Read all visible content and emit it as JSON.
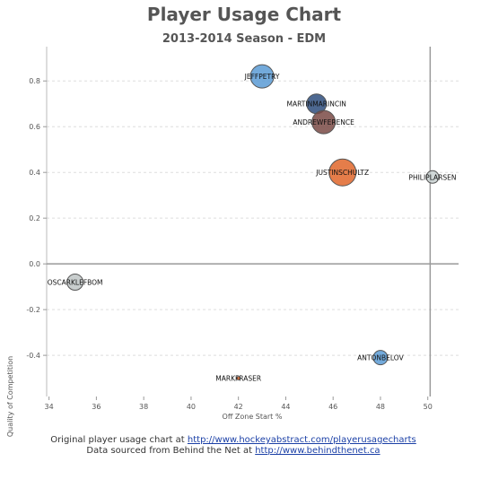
{
  "header": {
    "title": "Player Usage Chart",
    "subtitle": "2013-2014 Season - EDM"
  },
  "footer": {
    "line1_prefix": "Original player usage chart at ",
    "line1_link": "http://www.hockeyabstract.com/playerusagecharts",
    "line2_prefix": "Data sourced from Behind the Net at ",
    "line2_link": "http://www.behindthenet.ca"
  },
  "chart_data": {
    "type": "scatter",
    "title": "Player Usage Chart",
    "subtitle": "2013-2014 Season - EDM",
    "xlabel": "Off Zone Start %",
    "ylabel": "Quality of Competition",
    "xlim": [
      33.9,
      51.3
    ],
    "ylim": [
      -0.58,
      0.95
    ],
    "x_ticks": [
      34,
      36,
      38,
      40,
      42,
      44,
      46,
      48,
      50
    ],
    "y_ticks": [
      0.8,
      0.6,
      0.4,
      0.2,
      0.0,
      -0.2,
      -0.4
    ],
    "y_tick_labels": [
      "0.8",
      "0.6",
      "0.4",
      "0.2",
      "0.0",
      "-0.2",
      "-0.4"
    ],
    "reference_lines": {
      "x": 50.1,
      "y": 0.0
    },
    "grid": "horizontal dashed",
    "points": [
      {
        "name": "JEFFPETRY",
        "x": 43.0,
        "y": 0.82,
        "size": 13,
        "color": "#5b9bd5"
      },
      {
        "name": "MARTINMARINCIN",
        "x": 45.3,
        "y": 0.7,
        "size": 11,
        "color": "#2e4e7e"
      },
      {
        "name": "ANDREWFERENCE",
        "x": 45.6,
        "y": 0.62,
        "size": 13,
        "color": "#7a4a45"
      },
      {
        "name": "JUSTINSCHULTZ",
        "x": 46.4,
        "y": 0.4,
        "size": 15,
        "color": "#e0662a"
      },
      {
        "name": "PHILIPLARSEN",
        "x": 50.2,
        "y": 0.38,
        "size": 7,
        "color": "#c8d0d0"
      },
      {
        "name": "OSCARKLEFBOM",
        "x": 35.1,
        "y": -0.08,
        "size": 9,
        "color": "#c0c6c6"
      },
      {
        "name": "ANTONBELOV",
        "x": 48.0,
        "y": -0.41,
        "size": 8,
        "color": "#5b9bd5"
      },
      {
        "name": "MARKFRASER",
        "x": 42.0,
        "y": -0.5,
        "size": 2,
        "color": "#e0662a"
      }
    ]
  }
}
